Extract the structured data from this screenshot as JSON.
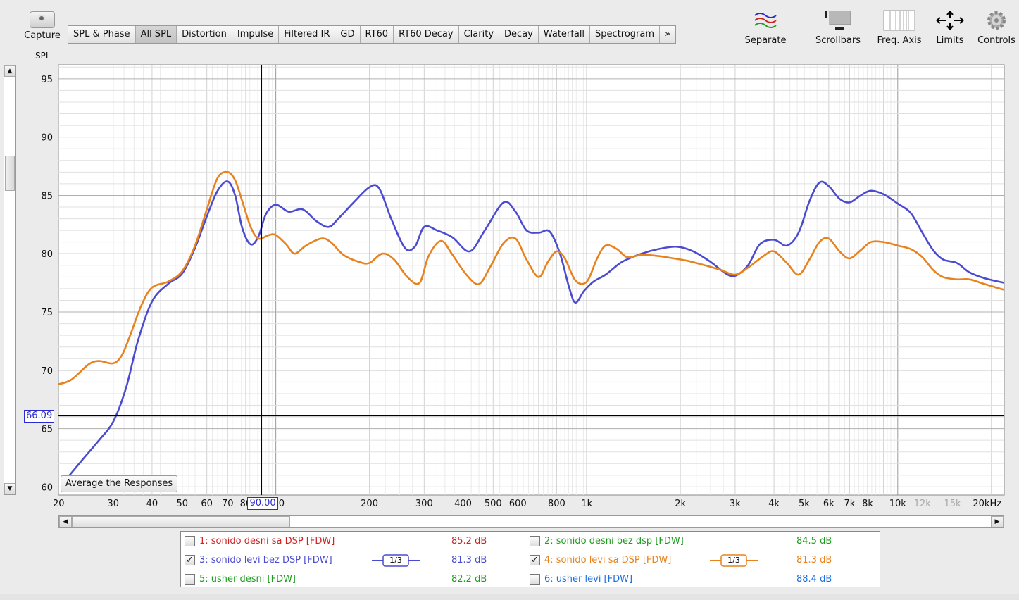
{
  "toolbar": {
    "capture_label": "Capture",
    "tabs": [
      "SPL & Phase",
      "All SPL",
      "Distortion",
      "Impulse",
      "Filtered IR",
      "GD",
      "RT60",
      "RT60 Decay",
      "Clarity",
      "Decay",
      "Waterfall",
      "Spectrogram",
      "»"
    ],
    "active_tab": "All SPL",
    "separate_label": "Separate",
    "scrollbars_label": "Scrollbars",
    "freq_axis_label": "Freq. Axis",
    "limits_label": "Limits",
    "controls_label": "Controls"
  },
  "average_button_label": "Average the Responses",
  "cursor": {
    "y_value": "66.09",
    "x_value": "90.00"
  },
  "chart_data": {
    "type": "line",
    "ylabel": "SPL",
    "xlabel": "",
    "xscale": "log",
    "xlim": [
      20,
      22000
    ],
    "ylim": [
      59.3,
      96.2
    ],
    "grid": true,
    "y_ticks": [
      60,
      65,
      70,
      75,
      80,
      85,
      90,
      95
    ],
    "x_tick_labels": [
      {
        "v": 20,
        "t": "20"
      },
      {
        "v": 30,
        "t": "30"
      },
      {
        "v": 40,
        "t": "40"
      },
      {
        "v": 50,
        "t": "50"
      },
      {
        "v": 60,
        "t": "60"
      },
      {
        "v": 70,
        "t": "70"
      },
      {
        "v": 80,
        "t": "80"
      },
      {
        "v": 100,
        "t": "100"
      },
      {
        "v": 200,
        "t": "200"
      },
      {
        "v": 300,
        "t": "300"
      },
      {
        "v": 400,
        "t": "400"
      },
      {
        "v": 500,
        "t": "500"
      },
      {
        "v": 600,
        "t": "600"
      },
      {
        "v": 800,
        "t": "800"
      },
      {
        "v": 1000,
        "t": "1k"
      },
      {
        "v": 2000,
        "t": "2k"
      },
      {
        "v": 3000,
        "t": "3k"
      },
      {
        "v": 4000,
        "t": "4k"
      },
      {
        "v": 5000,
        "t": "5k"
      },
      {
        "v": 6000,
        "t": "6k"
      },
      {
        "v": 7000,
        "t": "7k"
      },
      {
        "v": 8000,
        "t": "8k"
      },
      {
        "v": 10000,
        "t": "10k"
      },
      {
        "v": 12000,
        "t": "12k",
        "faded": true
      },
      {
        "v": 15000,
        "t": "15k",
        "faded": true
      },
      {
        "v": 20000,
        "t": "20kHz"
      }
    ],
    "series": [
      {
        "name": "3: sonido levi bez DSP [FDW]",
        "color": "#4b4bd0",
        "points": [
          [
            20.5,
            60.2
          ],
          [
            24,
            62.4
          ],
          [
            27,
            64.0
          ],
          [
            30,
            65.6
          ],
          [
            33,
            68.5
          ],
          [
            36,
            72.5
          ],
          [
            40,
            75.9
          ],
          [
            45,
            77.4
          ],
          [
            50,
            78.3
          ],
          [
            55,
            80.5
          ],
          [
            60,
            83.2
          ],
          [
            65,
            85.4
          ],
          [
            70,
            86.2
          ],
          [
            74,
            85.0
          ],
          [
            78,
            82.2
          ],
          [
            83,
            80.8
          ],
          [
            88,
            81.5
          ],
          [
            93,
            83.4
          ],
          [
            100,
            84.2
          ],
          [
            110,
            83.6
          ],
          [
            122,
            83.8
          ],
          [
            135,
            82.8
          ],
          [
            148,
            82.3
          ],
          [
            160,
            83.1
          ],
          [
            178,
            84.4
          ],
          [
            200,
            85.7
          ],
          [
            215,
            85.6
          ],
          [
            235,
            83.0
          ],
          [
            260,
            80.5
          ],
          [
            280,
            80.6
          ],
          [
            300,
            82.3
          ],
          [
            330,
            82.0
          ],
          [
            370,
            81.4
          ],
          [
            420,
            80.2
          ],
          [
            470,
            82.0
          ],
          [
            540,
            84.4
          ],
          [
            590,
            83.6
          ],
          [
            640,
            82.0
          ],
          [
            700,
            81.8
          ],
          [
            760,
            81.9
          ],
          [
            820,
            80.0
          ],
          [
            880,
            77.0
          ],
          [
            920,
            75.8
          ],
          [
            980,
            76.8
          ],
          [
            1050,
            77.6
          ],
          [
            1150,
            78.2
          ],
          [
            1300,
            79.3
          ],
          [
            1500,
            80.0
          ],
          [
            1700,
            80.4
          ],
          [
            1950,
            80.6
          ],
          [
            2200,
            80.2
          ],
          [
            2500,
            79.3
          ],
          [
            2800,
            78.3
          ],
          [
            3000,
            78.1
          ],
          [
            3300,
            79.0
          ],
          [
            3600,
            80.8
          ],
          [
            4000,
            81.2
          ],
          [
            4400,
            80.7
          ],
          [
            4800,
            81.8
          ],
          [
            5200,
            84.5
          ],
          [
            5600,
            86.1
          ],
          [
            6000,
            85.8
          ],
          [
            6500,
            84.7
          ],
          [
            7000,
            84.4
          ],
          [
            7600,
            85.0
          ],
          [
            8200,
            85.4
          ],
          [
            9000,
            85.1
          ],
          [
            10000,
            84.3
          ],
          [
            11000,
            83.5
          ],
          [
            12000,
            81.8
          ],
          [
            13000,
            80.3
          ],
          [
            14000,
            79.5
          ],
          [
            15500,
            79.2
          ],
          [
            17000,
            78.4
          ],
          [
            19000,
            77.9
          ],
          [
            22000,
            77.5
          ]
        ]
      },
      {
        "name": "4: sonido levi sa DSP [FDW]",
        "color": "#e8821e",
        "points": [
          [
            20,
            68.8
          ],
          [
            22,
            69.2
          ],
          [
            25,
            70.5
          ],
          [
            27,
            70.8
          ],
          [
            30,
            70.6
          ],
          [
            32,
            71.3
          ],
          [
            34,
            73.0
          ],
          [
            37,
            75.6
          ],
          [
            40,
            77.1
          ],
          [
            45,
            77.6
          ],
          [
            50,
            78.5
          ],
          [
            55,
            80.7
          ],
          [
            60,
            83.8
          ],
          [
            65,
            86.5
          ],
          [
            70,
            87.0
          ],
          [
            74,
            86.3
          ],
          [
            78,
            84.5
          ],
          [
            83,
            82.3
          ],
          [
            88,
            81.3
          ],
          [
            95,
            81.6
          ],
          [
            100,
            81.6
          ],
          [
            108,
            80.8
          ],
          [
            115,
            80.0
          ],
          [
            125,
            80.7
          ],
          [
            140,
            81.3
          ],
          [
            150,
            81.0
          ],
          [
            165,
            79.9
          ],
          [
            185,
            79.3
          ],
          [
            200,
            79.2
          ],
          [
            220,
            80.0
          ],
          [
            240,
            79.5
          ],
          [
            265,
            78.0
          ],
          [
            290,
            77.5
          ],
          [
            310,
            79.8
          ],
          [
            340,
            81.1
          ],
          [
            370,
            79.9
          ],
          [
            410,
            78.2
          ],
          [
            450,
            77.4
          ],
          [
            490,
            78.9
          ],
          [
            540,
            80.9
          ],
          [
            590,
            81.3
          ],
          [
            640,
            79.5
          ],
          [
            700,
            78.0
          ],
          [
            750,
            79.3
          ],
          [
            800,
            80.2
          ],
          [
            850,
            79.6
          ],
          [
            920,
            77.7
          ],
          [
            1000,
            77.6
          ],
          [
            1080,
            79.6
          ],
          [
            1150,
            80.7
          ],
          [
            1250,
            80.4
          ],
          [
            1350,
            79.7
          ],
          [
            1500,
            79.9
          ],
          [
            1700,
            79.8
          ],
          [
            1900,
            79.6
          ],
          [
            2100,
            79.4
          ],
          [
            2400,
            79.0
          ],
          [
            2700,
            78.6
          ],
          [
            3000,
            78.2
          ],
          [
            3300,
            78.8
          ],
          [
            3700,
            79.8
          ],
          [
            4000,
            80.2
          ],
          [
            4400,
            79.2
          ],
          [
            4800,
            78.2
          ],
          [
            5200,
            79.5
          ],
          [
            5600,
            81.0
          ],
          [
            6000,
            81.3
          ],
          [
            6500,
            80.2
          ],
          [
            7000,
            79.6
          ],
          [
            7600,
            80.3
          ],
          [
            8200,
            81.0
          ],
          [
            9000,
            81.0
          ],
          [
            10000,
            80.7
          ],
          [
            11000,
            80.4
          ],
          [
            12000,
            79.7
          ],
          [
            13000,
            78.6
          ],
          [
            14000,
            78.0
          ],
          [
            15500,
            77.8
          ],
          [
            17000,
            77.8
          ],
          [
            19000,
            77.4
          ],
          [
            22000,
            76.9
          ]
        ]
      }
    ]
  },
  "legend": {
    "rows": [
      [
        {
          "label": "1: sonido desni sa DSP [FDW]",
          "value": "85.2 dB",
          "color": "#d02020",
          "checked": false,
          "smoothing": ""
        },
        {
          "label": "2: sonido desni bez dsp [FDW]",
          "value": "84.5 dB",
          "color": "#1e9c1e",
          "checked": false,
          "smoothing": ""
        }
      ],
      [
        {
          "label": "3: sonido levi bez DSP [FDW]",
          "value": "81.3 dB",
          "color": "#4b4bd0",
          "checked": true,
          "smoothing": "1/3"
        },
        {
          "label": "4: sonido levi sa DSP [FDW]",
          "value": "81.3 dB",
          "color": "#e8821e",
          "checked": true,
          "smoothing": "1/3"
        }
      ],
      [
        {
          "label": "5: usher desni [FDW]",
          "value": "82.2 dB",
          "color": "#1e9c1e",
          "checked": false,
          "smoothing": ""
        },
        {
          "label": "6: usher levi [FDW]",
          "value": "88.4 dB",
          "color": "#1e6ee0",
          "checked": false,
          "smoothing": ""
        }
      ]
    ]
  },
  "icons": {
    "capture": "camera-icon",
    "separate": "separate-traces-icon",
    "scrollbars": "scrollbars-icon",
    "freq_axis": "freq-axis-icon",
    "limits": "limits-arrows-icon",
    "controls": "gear-icon"
  }
}
